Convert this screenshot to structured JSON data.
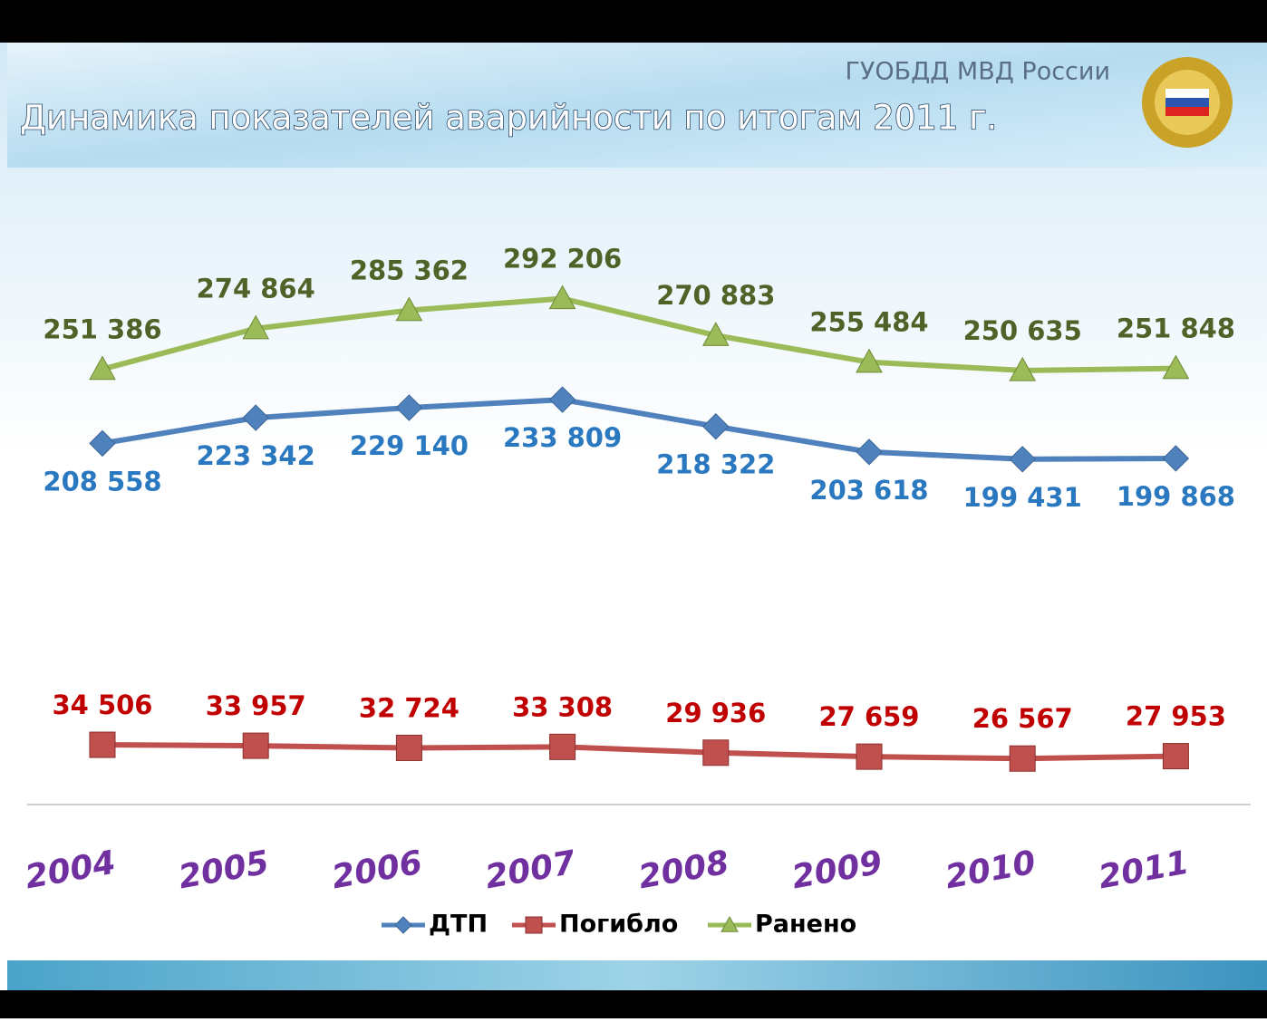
{
  "header": {
    "organization": "ГУОБДД МВД России"
  },
  "chart_data": {
    "type": "line",
    "title": "Динамика показателей аварийности по итогам 2011 г.",
    "categories": [
      "2004",
      "2005",
      "2006",
      "2007",
      "2008",
      "2009",
      "2010",
      "2011"
    ],
    "ylim": [
      0,
      350000
    ],
    "legend": "bottom",
    "series": [
      {
        "name": "ДТП",
        "color": "#4f81bd",
        "label_color": "#2a78c0",
        "marker": "diamond",
        "label_position": "below",
        "values": [
          208558,
          223342,
          229140,
          233809,
          218322,
          203618,
          199431,
          199868
        ],
        "value_labels": [
          "208 558",
          "223 342",
          "229 140",
          "233 809",
          "218 322",
          "203 618",
          "199 431",
          "199 868"
        ]
      },
      {
        "name": "Погибло",
        "color": "#c0504d",
        "label_color": "#c00000",
        "marker": "square",
        "label_position": "above",
        "values": [
          34506,
          33957,
          32724,
          33308,
          29936,
          27659,
          26567,
          27953
        ],
        "value_labels": [
          "34 506",
          "33 957",
          "32 724",
          "33 308",
          "29 936",
          "27 659",
          "26 567",
          "27 953"
        ]
      },
      {
        "name": "Ранено",
        "color": "#9bbb59",
        "label_color": "#4f6228",
        "marker": "triangle",
        "label_position": "above",
        "values": [
          251386,
          274864,
          285362,
          292206,
          270883,
          255484,
          250635,
          251848
        ],
        "value_labels": [
          "251 386",
          "274 864",
          "285 362",
          "292 206",
          "270 883",
          "255 484",
          "250 635",
          "251 848"
        ]
      }
    ]
  }
}
